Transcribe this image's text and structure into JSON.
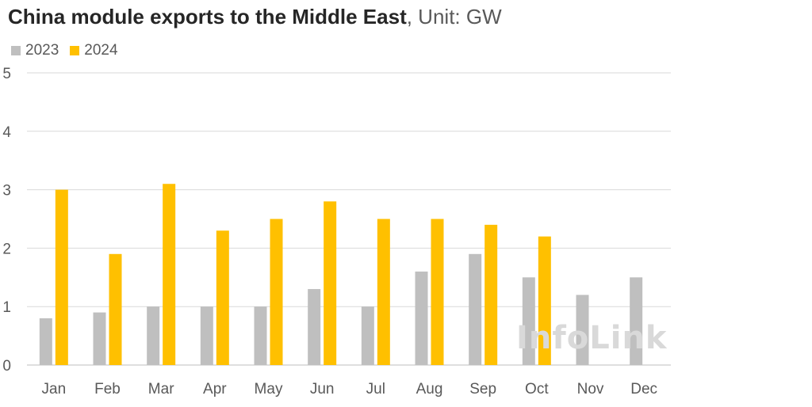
{
  "title": {
    "main": "China module exports to the Middle East",
    "unit": ", Unit: GW"
  },
  "watermark": "InfoLink",
  "chart_data": {
    "type": "bar",
    "categories": [
      "Jan",
      "Feb",
      "Mar",
      "Apr",
      "May",
      "Jun",
      "Jul",
      "Aug",
      "Sep",
      "Oct",
      "Nov",
      "Dec"
    ],
    "series": [
      {
        "name": "2023",
        "color": "#bfbfbf",
        "values": [
          0.8,
          0.9,
          1.0,
          1.0,
          1.0,
          1.3,
          1.0,
          1.6,
          1.9,
          1.5,
          1.2,
          1.5
        ]
      },
      {
        "name": "2024",
        "color": "#ffc000",
        "values": [
          3.0,
          1.9,
          3.1,
          2.3,
          2.5,
          2.8,
          2.5,
          2.5,
          2.4,
          2.2,
          null,
          null
        ]
      }
    ],
    "ylim": [
      0,
      5
    ],
    "yticks": [
      0,
      1,
      2,
      3,
      4,
      5
    ],
    "grid": true,
    "legend": "top-left"
  }
}
